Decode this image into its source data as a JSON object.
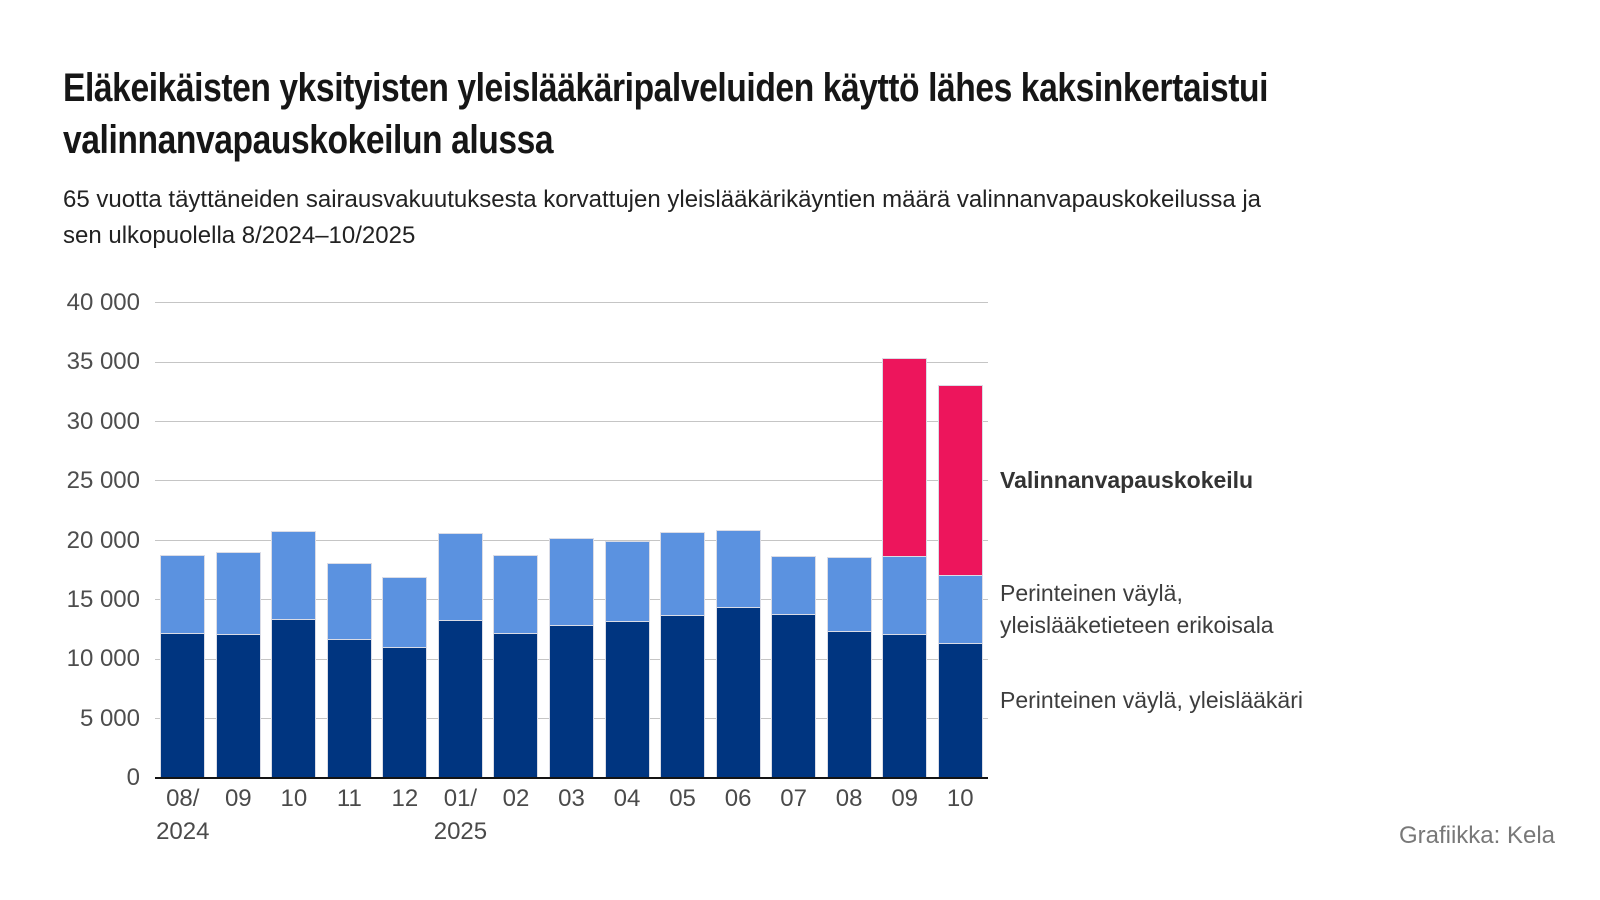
{
  "header": {
    "title_line1": "Eläkeikäisten yksityisten yleislääkäripalveluiden käyttö lähes kaksinkertaistui",
    "title_line2": "valinnanvapauskokeilun alussa",
    "subtitle_line1": "65 vuotta täyttäneiden sairausvakuutuksesta korvattujen yleislääkärikäyntien määrä valinnanvapauskokeilussa ja",
    "subtitle_line2": "sen ulkopuolella 8/2024–10/2025"
  },
  "legend": {
    "kokeilu": "Valinnanvapauskokeilu",
    "erikoisala_line1": "Perinteinen väylä,",
    "erikoisala_line2": "yleislääketieteen erikoisala",
    "yleislaakari": "Perinteinen väylä, yleislääkäri"
  },
  "credit": "Grafiikka: Kela",
  "chart_data": {
    "type": "bar",
    "stacked": true,
    "title": "65 vuotta täyttäneiden sairausvakuutuksesta korvattujen yleislääkärikäyntien määrä valinnanvapauskokeilussa ja sen ulkopuolella 8/2024–10/2025",
    "categories": [
      "08/2024",
      "09/2024",
      "10/2024",
      "11/2024",
      "12/2024",
      "01/2025",
      "02/2025",
      "03/2025",
      "04/2025",
      "05/2025",
      "06/2025",
      "07/2025",
      "08/2025",
      "09/2025",
      "10/2025"
    ],
    "categories_display": [
      {
        "month": "08/",
        "year": "2024"
      },
      {
        "month": "09"
      },
      {
        "month": "10"
      },
      {
        "month": "11"
      },
      {
        "month": "12"
      },
      {
        "month": "01/",
        "year": "2025"
      },
      {
        "month": "02"
      },
      {
        "month": "03"
      },
      {
        "month": "04"
      },
      {
        "month": "05"
      },
      {
        "month": "06"
      },
      {
        "month": "07"
      },
      {
        "month": "08"
      },
      {
        "month": "09"
      },
      {
        "month": "10"
      }
    ],
    "series": [
      {
        "name": "Perinteinen väylä, yleislääkäri",
        "color": "#003580",
        "values": [
          12200,
          12100,
          13400,
          11700,
          11000,
          13300,
          12200,
          12900,
          13200,
          13700,
          14400,
          13800,
          12400,
          12100,
          11400
        ]
      },
      {
        "name": "Perinteinen väylä, yleislääketieteen erikoisala",
        "color": "#5B92E0",
        "values": [
          6600,
          6900,
          7400,
          6400,
          5900,
          7300,
          6600,
          7300,
          6800,
          7000,
          6500,
          4900,
          6200,
          6600,
          5700
        ]
      },
      {
        "name": "Valinnanvapauskokeilu",
        "color": "#ED155C",
        "values": [
          0,
          0,
          0,
          0,
          0,
          0,
          0,
          0,
          0,
          0,
          0,
          0,
          0,
          16700,
          16000
        ]
      }
    ],
    "stack_totals": [
      18800,
      19000,
      20800,
      18100,
      16900,
      20600,
      18800,
      20200,
      20000,
      20700,
      20900,
      18700,
      18600,
      35400,
      33100
    ],
    "xlabel": "",
    "ylabel": "",
    "ylim": [
      0,
      40000
    ],
    "yticks": [
      {
        "value": 0,
        "label": "0"
      },
      {
        "value": 5000,
        "label": "5 000"
      },
      {
        "value": 10000,
        "label": "10 000"
      },
      {
        "value": 15000,
        "label": "15 000"
      },
      {
        "value": 20000,
        "label": "20 000"
      },
      {
        "value": 25000,
        "label": "25 000"
      },
      {
        "value": 30000,
        "label": "30 000"
      },
      {
        "value": 35000,
        "label": "35 000"
      },
      {
        "value": 40000,
        "label": "40 000"
      }
    ],
    "grid": true,
    "legend_position": "right-annotations"
  },
  "colors": {
    "dark_blue": "#003580",
    "light_blue": "#5B92E0",
    "pink": "#ED155C",
    "gridline": "#c5c5c5",
    "axis": "#141414",
    "segment_border": "#dadce6"
  }
}
